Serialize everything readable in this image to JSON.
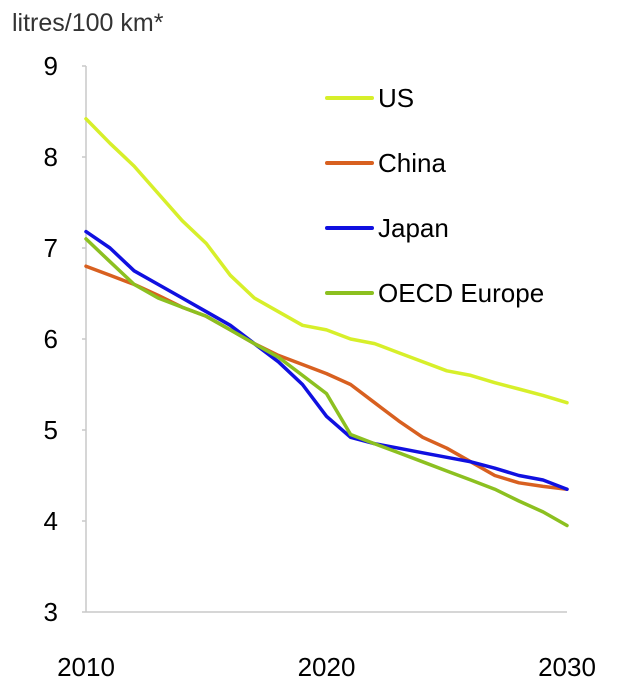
{
  "chart_data": {
    "type": "line",
    "title": "",
    "ylabel": "litres/100 km*",
    "xlabel": "",
    "xlim": [
      2010,
      2030
    ],
    "ylim": [
      3,
      9
    ],
    "x_ticks": [
      "2010",
      "2020",
      "2030"
    ],
    "y_ticks": [
      "3",
      "4",
      "5",
      "6",
      "7",
      "8",
      "9"
    ],
    "grid": false,
    "legend_placement": "top-right",
    "x": [
      2010,
      2011,
      2012,
      2013,
      2014,
      2015,
      2016,
      2017,
      2018,
      2019,
      2020,
      2021,
      2022,
      2023,
      2024,
      2025,
      2026,
      2027,
      2028,
      2029,
      2030
    ],
    "series": [
      {
        "name": "US",
        "color": "#d7ef2a",
        "values": [
          8.42,
          8.15,
          7.9,
          7.6,
          7.3,
          7.05,
          6.7,
          6.45,
          6.3,
          6.15,
          6.1,
          6.0,
          5.95,
          5.85,
          5.75,
          5.65,
          5.6,
          5.52,
          5.45,
          5.38,
          5.3
        ]
      },
      {
        "name": "China",
        "color": "#d86020",
        "values": [
          6.8,
          6.7,
          6.6,
          6.48,
          6.35,
          6.25,
          6.1,
          5.95,
          5.82,
          5.72,
          5.62,
          5.5,
          5.3,
          5.1,
          4.92,
          4.8,
          4.65,
          4.5,
          4.42,
          4.38,
          4.35
        ]
      },
      {
        "name": "Japan",
        "color": "#1010e0",
        "values": [
          7.18,
          7.0,
          6.75,
          6.6,
          6.45,
          6.3,
          6.15,
          5.95,
          5.75,
          5.5,
          5.15,
          4.92,
          4.85,
          4.8,
          4.75,
          4.7,
          4.65,
          4.58,
          4.5,
          4.45,
          4.35
        ]
      },
      {
        "name": "OECD Europe",
        "color": "#8cc020",
        "values": [
          7.1,
          6.85,
          6.6,
          6.45,
          6.35,
          6.25,
          6.1,
          5.95,
          5.8,
          5.6,
          5.4,
          4.95,
          4.85,
          4.75,
          4.65,
          4.55,
          4.45,
          4.35,
          4.22,
          4.1,
          3.95
        ]
      }
    ]
  }
}
